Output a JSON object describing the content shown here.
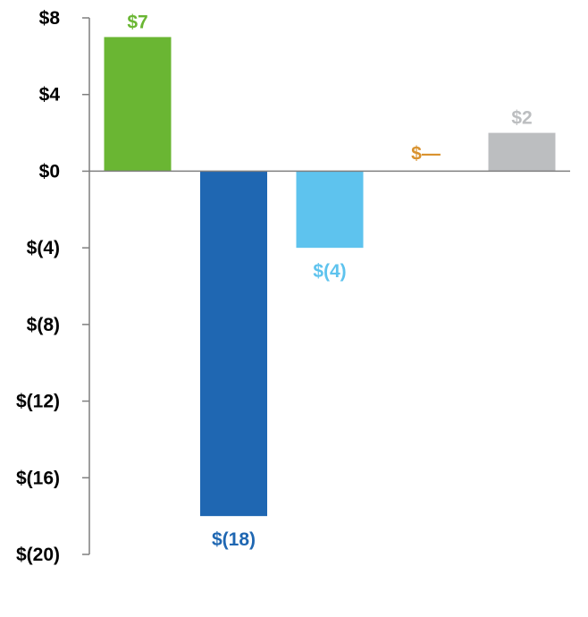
{
  "chart_data": {
    "type": "bar",
    "title": "",
    "xlabel": "",
    "ylabel": "",
    "ylim": [
      -20,
      8
    ],
    "y_ticks": [
      8,
      4,
      0,
      -4,
      -8,
      -12,
      -16,
      -20
    ],
    "y_tick_labels": [
      "$8",
      "$4",
      "$0",
      "$(4)",
      "$(8)",
      "$(12)",
      "$(16)",
      "$(20)"
    ],
    "categories": [
      "",
      "",
      "",
      "",
      ""
    ],
    "values": [
      7,
      -18,
      -4,
      0,
      2
    ],
    "data_labels": [
      "$7",
      "$(18)",
      "$(4)",
      "$—",
      "$2"
    ],
    "colors": [
      "#6ab633",
      "#1f67b2",
      "#5ec3ee",
      "#d9922e",
      "#bcbec0"
    ],
    "legend": []
  }
}
